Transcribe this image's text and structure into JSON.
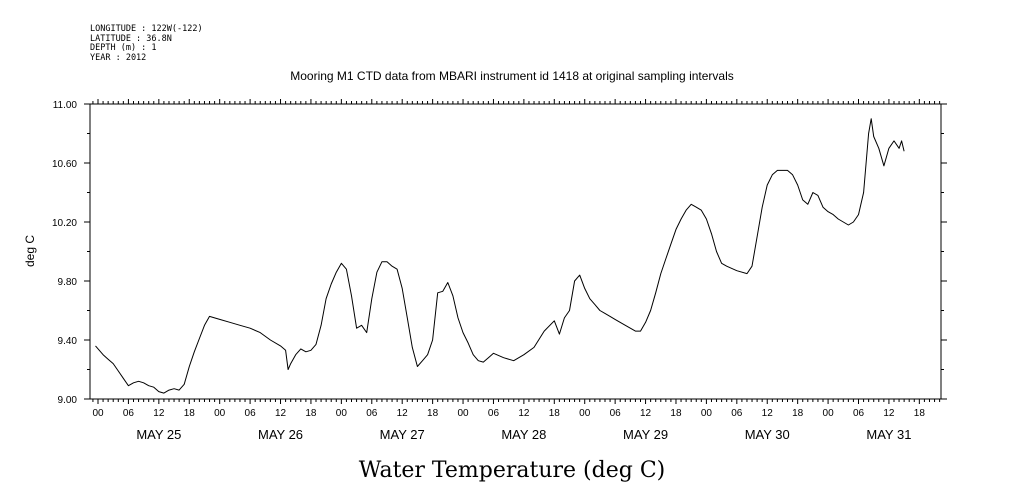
{
  "header": {
    "lines": [
      "LONGITUDE : 122W(-122)",
      "LATITUDE : 36.8N",
      "DEPTH (m) : 1",
      "YEAR : 2012"
    ]
  },
  "chart_data": {
    "type": "line",
    "title": "Mooring M1 CTD data from MBARI instrument id 1418 at original sampling intervals",
    "xlabel": "Water Temperature (deg C)",
    "ylabel": "deg C",
    "ylim": [
      9.0,
      11.0
    ],
    "yticks": [
      "9.00",
      "9.40",
      "9.80",
      "10.20",
      "10.60",
      "11.00"
    ],
    "x_hour_ticks": [
      "00",
      "06",
      "12",
      "18",
      "00",
      "06",
      "12",
      "18",
      "00",
      "06",
      "12",
      "18",
      "00",
      "06",
      "12",
      "18",
      "00",
      "06",
      "12",
      "18",
      "00",
      "06",
      "12",
      "18",
      "00",
      "06",
      "12",
      "18"
    ],
    "x_day_labels": [
      "MAY 25",
      "MAY 26",
      "MAY 27",
      "MAY 28",
      "MAY 29",
      "MAY 30",
      "MAY 31"
    ],
    "x_unit": "hours since 2012-05-25 00:00",
    "xlim": [
      -0.5,
      166
    ],
    "grid": false,
    "series": [
      {
        "color": "#000000",
        "points": [
          [
            -0.5,
            9.36
          ],
          [
            1,
            9.3
          ],
          [
            2,
            9.27
          ],
          [
            3,
            9.24
          ],
          [
            4,
            9.19
          ],
          [
            5,
            9.14
          ],
          [
            6,
            9.09
          ],
          [
            7,
            9.11
          ],
          [
            8,
            9.12
          ],
          [
            9,
            9.11
          ],
          [
            10,
            9.09
          ],
          [
            11,
            9.08
          ],
          [
            12,
            9.05
          ],
          [
            13,
            9.04
          ],
          [
            14,
            9.06
          ],
          [
            15,
            9.07
          ],
          [
            16,
            9.06
          ],
          [
            17,
            9.1
          ],
          [
            18,
            9.22
          ],
          [
            19,
            9.32
          ],
          [
            20,
            9.41
          ],
          [
            21,
            9.5
          ],
          [
            22,
            9.56
          ],
          [
            24,
            9.54
          ],
          [
            26,
            9.52
          ],
          [
            28,
            9.5
          ],
          [
            30,
            9.48
          ],
          [
            32,
            9.45
          ],
          [
            34,
            9.4
          ],
          [
            36,
            9.36
          ],
          [
            37,
            9.33
          ],
          [
            37.5,
            9.2
          ],
          [
            38,
            9.24
          ],
          [
            39,
            9.3
          ],
          [
            40,
            9.34
          ],
          [
            41,
            9.32
          ],
          [
            42,
            9.33
          ],
          [
            43,
            9.37
          ],
          [
            44,
            9.5
          ],
          [
            45,
            9.68
          ],
          [
            46,
            9.78
          ],
          [
            47,
            9.86
          ],
          [
            48,
            9.92
          ],
          [
            49,
            9.88
          ],
          [
            50,
            9.7
          ],
          [
            51,
            9.48
          ],
          [
            52,
            9.5
          ],
          [
            53,
            9.45
          ],
          [
            54,
            9.68
          ],
          [
            55,
            9.86
          ],
          [
            56,
            9.93
          ],
          [
            57,
            9.93
          ],
          [
            58,
            9.9
          ],
          [
            59,
            9.88
          ],
          [
            60,
            9.75
          ],
          [
            61,
            9.55
          ],
          [
            62,
            9.35
          ],
          [
            63,
            9.22
          ],
          [
            64,
            9.26
          ],
          [
            65,
            9.3
          ],
          [
            66,
            9.4
          ],
          [
            67,
            9.72
          ],
          [
            68,
            9.73
          ],
          [
            69,
            9.79
          ],
          [
            70,
            9.7
          ],
          [
            71,
            9.55
          ],
          [
            72,
            9.45
          ],
          [
            73,
            9.38
          ],
          [
            74,
            9.3
          ],
          [
            75,
            9.26
          ],
          [
            76,
            9.25
          ],
          [
            77,
            9.28
          ],
          [
            78,
            9.31
          ],
          [
            80,
            9.28
          ],
          [
            82,
            9.26
          ],
          [
            84,
            9.3
          ],
          [
            86,
            9.35
          ],
          [
            88,
            9.46
          ],
          [
            90,
            9.53
          ],
          [
            91,
            9.44
          ],
          [
            92,
            9.55
          ],
          [
            93,
            9.6
          ],
          [
            94,
            9.8
          ],
          [
            95,
            9.84
          ],
          [
            96,
            9.75
          ],
          [
            97,
            9.68
          ],
          [
            98,
            9.64
          ],
          [
            99,
            9.6
          ],
          [
            100,
            9.58
          ],
          [
            101,
            9.56
          ],
          [
            102,
            9.54
          ],
          [
            104,
            9.5
          ],
          [
            106,
            9.46
          ],
          [
            107,
            9.46
          ],
          [
            108,
            9.52
          ],
          [
            109,
            9.6
          ],
          [
            110,
            9.72
          ],
          [
            111,
            9.85
          ],
          [
            112,
            9.95
          ],
          [
            113,
            10.05
          ],
          [
            114,
            10.15
          ],
          [
            115,
            10.22
          ],
          [
            116,
            10.28
          ],
          [
            117,
            10.32
          ],
          [
            118,
            10.3
          ],
          [
            119,
            10.28
          ],
          [
            120,
            10.22
          ],
          [
            121,
            10.12
          ],
          [
            122,
            10.0
          ],
          [
            123,
            9.92
          ],
          [
            124,
            9.9
          ],
          [
            126,
            9.87
          ],
          [
            128,
            9.85
          ],
          [
            129,
            9.9
          ],
          [
            130,
            10.1
          ],
          [
            131,
            10.3
          ],
          [
            132,
            10.45
          ],
          [
            133,
            10.52
          ],
          [
            134,
            10.55
          ],
          [
            136,
            10.55
          ],
          [
            137,
            10.52
          ],
          [
            138,
            10.45
          ],
          [
            139,
            10.35
          ],
          [
            140,
            10.32
          ],
          [
            141,
            10.4
          ],
          [
            142,
            10.38
          ],
          [
            143,
            10.3
          ],
          [
            144,
            10.27
          ],
          [
            145,
            10.25
          ],
          [
            146,
            10.22
          ],
          [
            147,
            10.2
          ],
          [
            148,
            10.18
          ],
          [
            149,
            10.2
          ],
          [
            150,
            10.25
          ],
          [
            151,
            10.4
          ],
          [
            152,
            10.8
          ],
          [
            152.5,
            10.9
          ],
          [
            153,
            10.78
          ],
          [
            154,
            10.7
          ],
          [
            155,
            10.58
          ],
          [
            156,
            10.7
          ],
          [
            157,
            10.75
          ],
          [
            158,
            10.7
          ],
          [
            158.5,
            10.75
          ],
          [
            159,
            10.68
          ]
        ]
      }
    ]
  }
}
